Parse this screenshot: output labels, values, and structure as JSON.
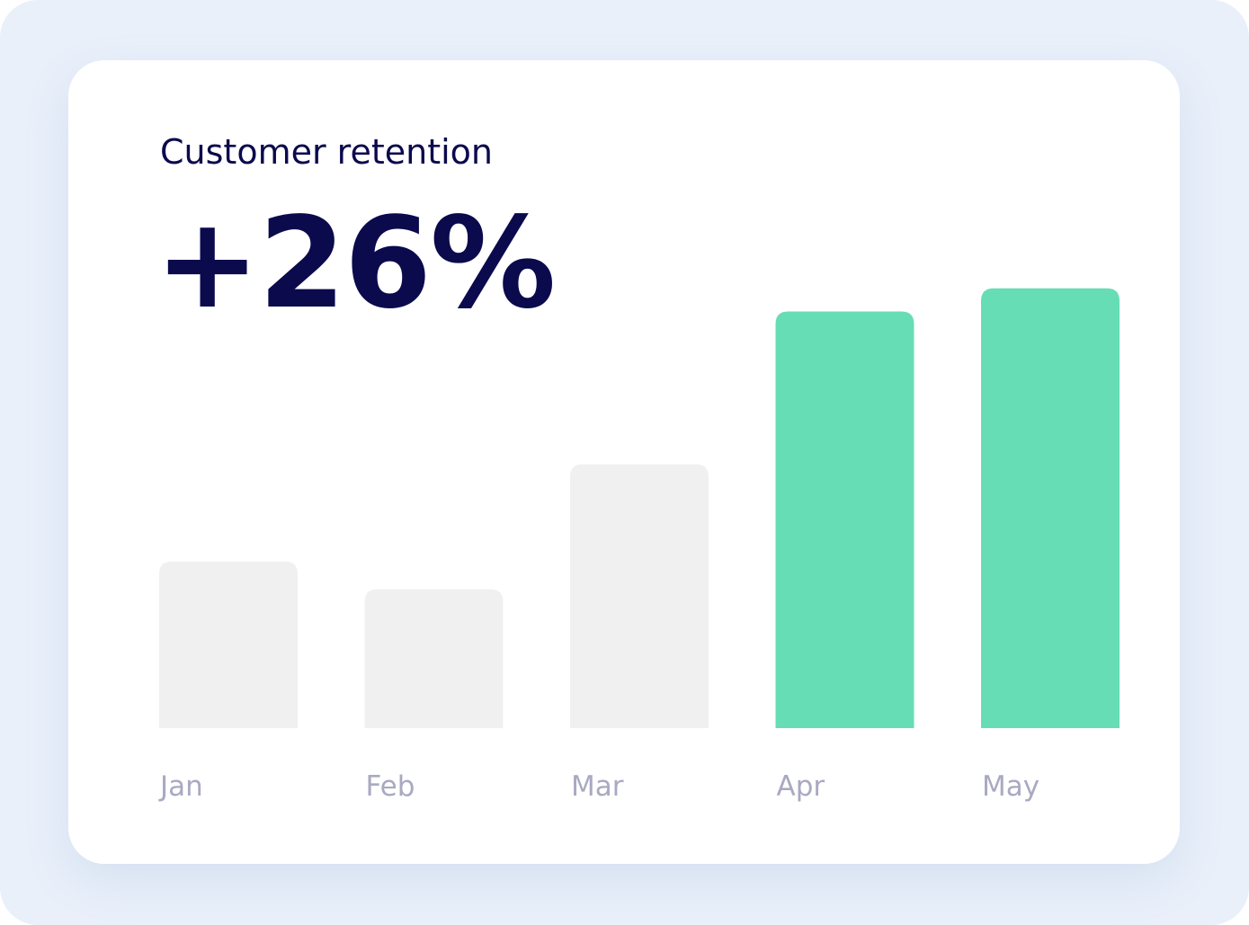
{
  "card": {
    "title": "Customer retention",
    "metric": "+26%"
  },
  "colors": {
    "background": "#e9f0fa",
    "card": "#ffffff",
    "text_dark": "#0b0a4d",
    "muted_bar": "#f0f0f0",
    "highlight_bar": "#67ddb5",
    "tick_label": "#a9a9c2"
  },
  "chart_data": {
    "type": "bar",
    "title": "",
    "xlabel": "",
    "ylabel": "",
    "categories": [
      "Jan",
      "Feb",
      "Mar",
      "Apr",
      "May"
    ],
    "values": [
      36,
      30,
      57,
      90,
      95
    ],
    "highlighted": [
      false,
      false,
      false,
      true,
      true
    ],
    "ylim": [
      0,
      100
    ],
    "grid": false,
    "legend": "none"
  }
}
